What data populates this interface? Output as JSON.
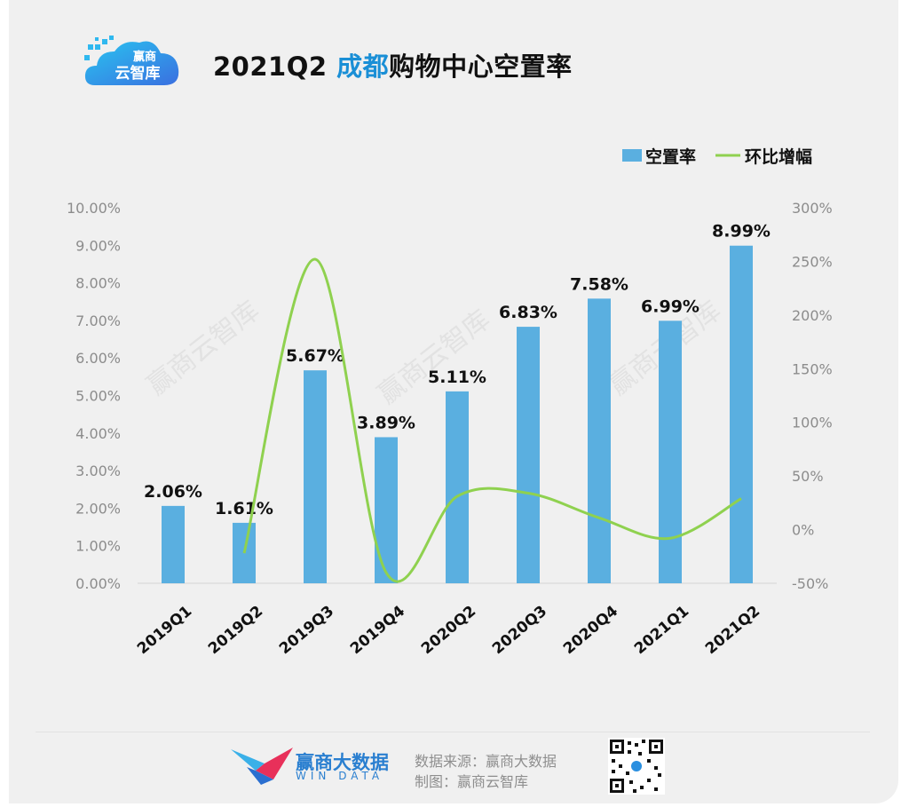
{
  "brand": {
    "logo_line1": "赢商",
    "logo_line2": "云智库"
  },
  "title": {
    "prefix": "2021Q2 ",
    "city": "成都",
    "suffix": "购物中心空置率"
  },
  "colors": {
    "bar": "#5aafe0",
    "line": "#8fd14f",
    "title_accent": "#1a8fd6",
    "brand_blue": "#2a7fd0"
  },
  "chart_data": {
    "type": "bar",
    "categories": [
      "2019Q1",
      "2019Q2",
      "2019Q3",
      "2019Q4",
      "2020Q2",
      "2020Q3",
      "2020Q4",
      "2021Q1",
      "2021Q2"
    ],
    "series": [
      {
        "name": "空置率",
        "type": "bar",
        "axis": "left",
        "values": [
          2.06,
          1.61,
          5.67,
          3.89,
          5.11,
          6.83,
          7.58,
          6.99,
          8.99
        ],
        "labels": [
          "2.06%",
          "1.61%",
          "5.67%",
          "3.89%",
          "5.11%",
          "6.83%",
          "7.58%",
          "6.99%",
          "8.99%"
        ]
      },
      {
        "name": "环比增幅",
        "type": "line",
        "axis": "right",
        "smooth": true,
        "values": [
          null,
          -22,
          252,
          -40,
          31,
          34,
          11,
          -8,
          29
        ]
      }
    ],
    "y_left": {
      "range": [
        0,
        10
      ],
      "ticks": [
        "0.00%",
        "1.00%",
        "2.00%",
        "3.00%",
        "4.00%",
        "5.00%",
        "6.00%",
        "7.00%",
        "8.00%",
        "9.00%",
        "10.00%"
      ]
    },
    "y_right": {
      "range": [
        -50,
        300
      ],
      "ticks": [
        "-50%",
        "0%",
        "50%",
        "100%",
        "150%",
        "200%",
        "250%",
        "300%"
      ]
    },
    "legend": {
      "position": "top-right"
    },
    "grid": false,
    "watermark": "赢商云智库"
  },
  "footer": {
    "brand_name": "赢商大数据",
    "brand_en": "WIN DATA",
    "source": "数据来源：赢商大数据",
    "maker": "制图：赢商云智库"
  }
}
